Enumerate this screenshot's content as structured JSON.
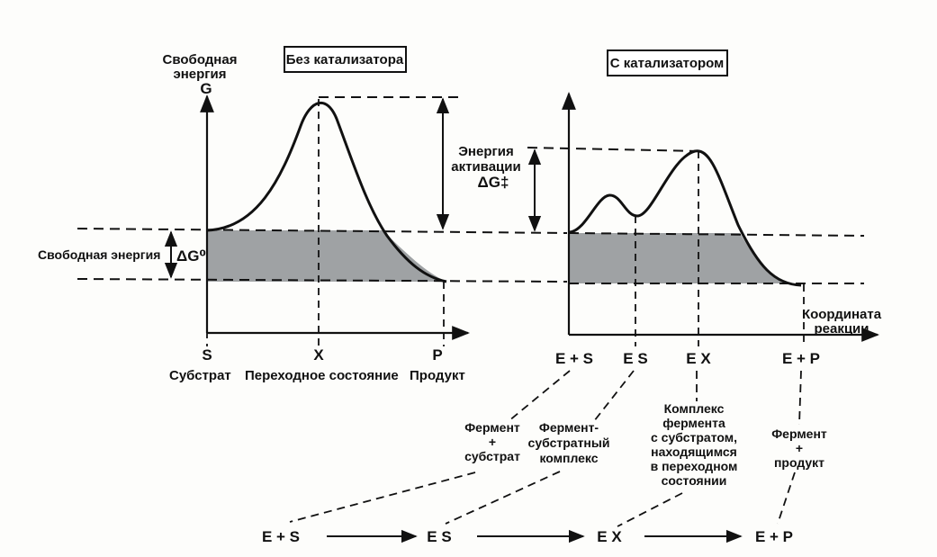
{
  "left_panel": {
    "box_title": "Без катализатора",
    "y_axis_lines": [
      "Свободная",
      "энергия",
      "G"
    ],
    "free_energy_label": "Свободная энергия",
    "delta_g0": "ΔG⁰",
    "ticks": [
      "S",
      "X",
      "P"
    ],
    "tick_captions": [
      "Субстрат",
      "Переходное состояние",
      "Продукт"
    ]
  },
  "right_panel": {
    "box_title": "С катализатором",
    "activation_lines": [
      "Энергия",
      "активации",
      "ΔG‡"
    ],
    "x_axis_lines": [
      "Координата",
      "реакции"
    ],
    "ticks": [
      "E + S",
      "E S",
      "E X",
      "E + P"
    ]
  },
  "captions": {
    "enzyme_substrate": [
      "Фермент",
      "+",
      "субстрат"
    ],
    "es_complex": [
      "Фермент-",
      "субстратный",
      "комплекс"
    ],
    "ex_complex": [
      "Комплекс",
      "фермента",
      "с субстратом,",
      "находящимся",
      "в переходном",
      "состоянии"
    ],
    "enzyme_product": [
      "Фермент",
      "+",
      "продукт"
    ]
  },
  "reaction_sequence": [
    "E + S",
    "E S",
    "E X",
    "E + P"
  ],
  "colors": {
    "ink": "#111111",
    "shade": "#8e9294"
  }
}
